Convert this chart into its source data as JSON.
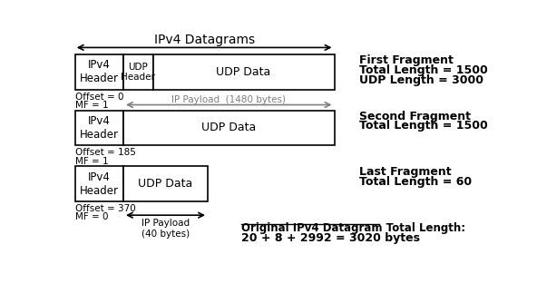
{
  "title": "IPv4 Datagrams",
  "bg_color": "#ffffff",
  "fragment1": {
    "label": "First Fragment",
    "total_length": "Total Length = 1500",
    "udp_length": "UDP Length = 3000",
    "offset": "Offset = 0",
    "mf": "MF = 1",
    "ip_payload": "IP Payload  (1480 bytes)"
  },
  "fragment2": {
    "label": "Second Fragment",
    "total_length": "Total Length = 1500",
    "offset": "Offset = 185",
    "mf": "MF = 1"
  },
  "fragment3": {
    "label": "Last Fragment",
    "total_length": "Total Length = 60",
    "offset": "Offset = 370",
    "mf": "MF = 0",
    "ip_payload": "IP Payload\n(40 bytes)"
  },
  "original": "Original IPv4 Datagram Total Length:",
  "original_calc": "20 + 8 + 2992 = 3020 bytes"
}
